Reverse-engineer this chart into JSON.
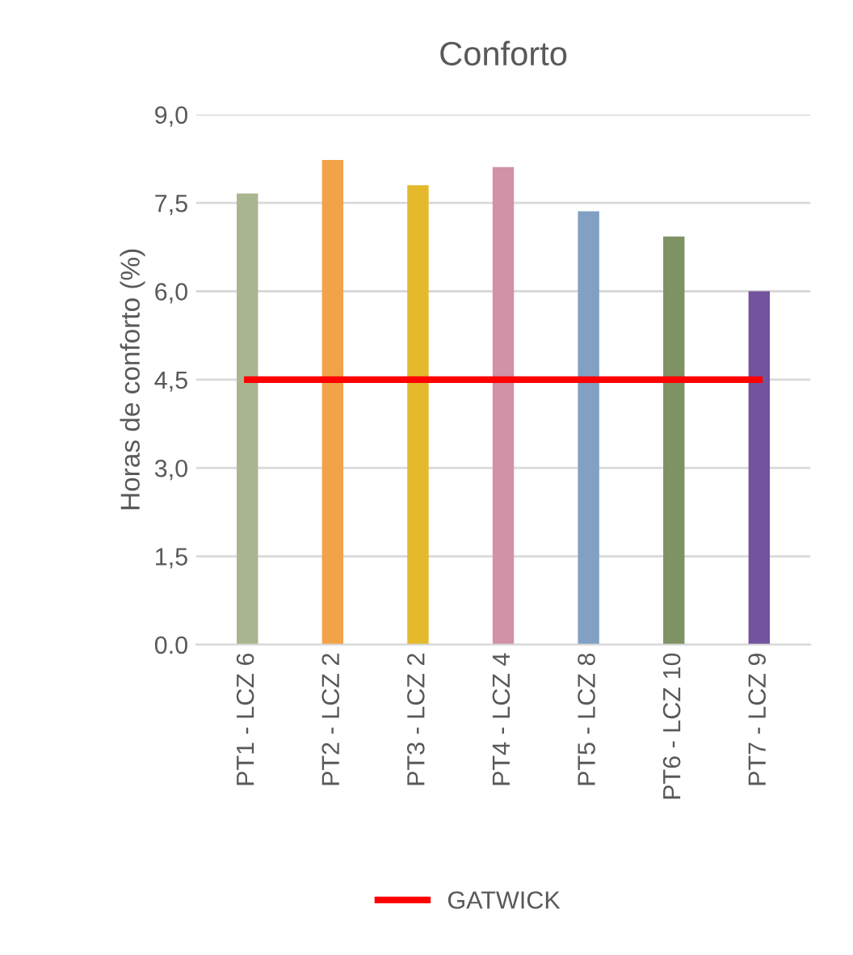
{
  "chart_data": {
    "type": "bar",
    "title": "Conforto",
    "ylabel": "Horas de conforto (%)",
    "categories": [
      "PT1 - LCZ 6",
      "PT2 - LCZ 2",
      "PT3 - LCZ 2",
      "PT4 - LCZ 4",
      "PT5 - LCZ 8",
      "PT6 - LCZ 10",
      "PT7 - LCZ 9"
    ],
    "series": [
      {
        "colors": [
          "#a9b58f",
          "#f2a34a",
          "#e5b92c",
          "#d191a7",
          "#81a0c3",
          "#7e9264",
          "#7352a0"
        ],
        "values": [
          7.66,
          8.23,
          7.8,
          8.11,
          7.36,
          6.93,
          6.0
        ]
      },
      {
        "type": "line",
        "name": "GATWICK",
        "color": "#ff0000",
        "values": [
          4.5,
          4.5,
          4.5,
          4.5,
          4.5,
          4.5,
          4.5
        ]
      }
    ],
    "ylim": [
      0,
      9
    ],
    "yticks": [
      {
        "value": 0,
        "label": "0.0"
      },
      {
        "value": 1.5,
        "label": "1,5"
      },
      {
        "value": 3,
        "label": "3,0"
      },
      {
        "value": 4.5,
        "label": "4,5"
      },
      {
        "value": 6,
        "label": "6,0"
      },
      {
        "value": 7.5,
        "label": "7,5"
      },
      {
        "value": 9,
        "label": "9,0"
      }
    ],
    "grid": "y",
    "legend": "bottom"
  }
}
